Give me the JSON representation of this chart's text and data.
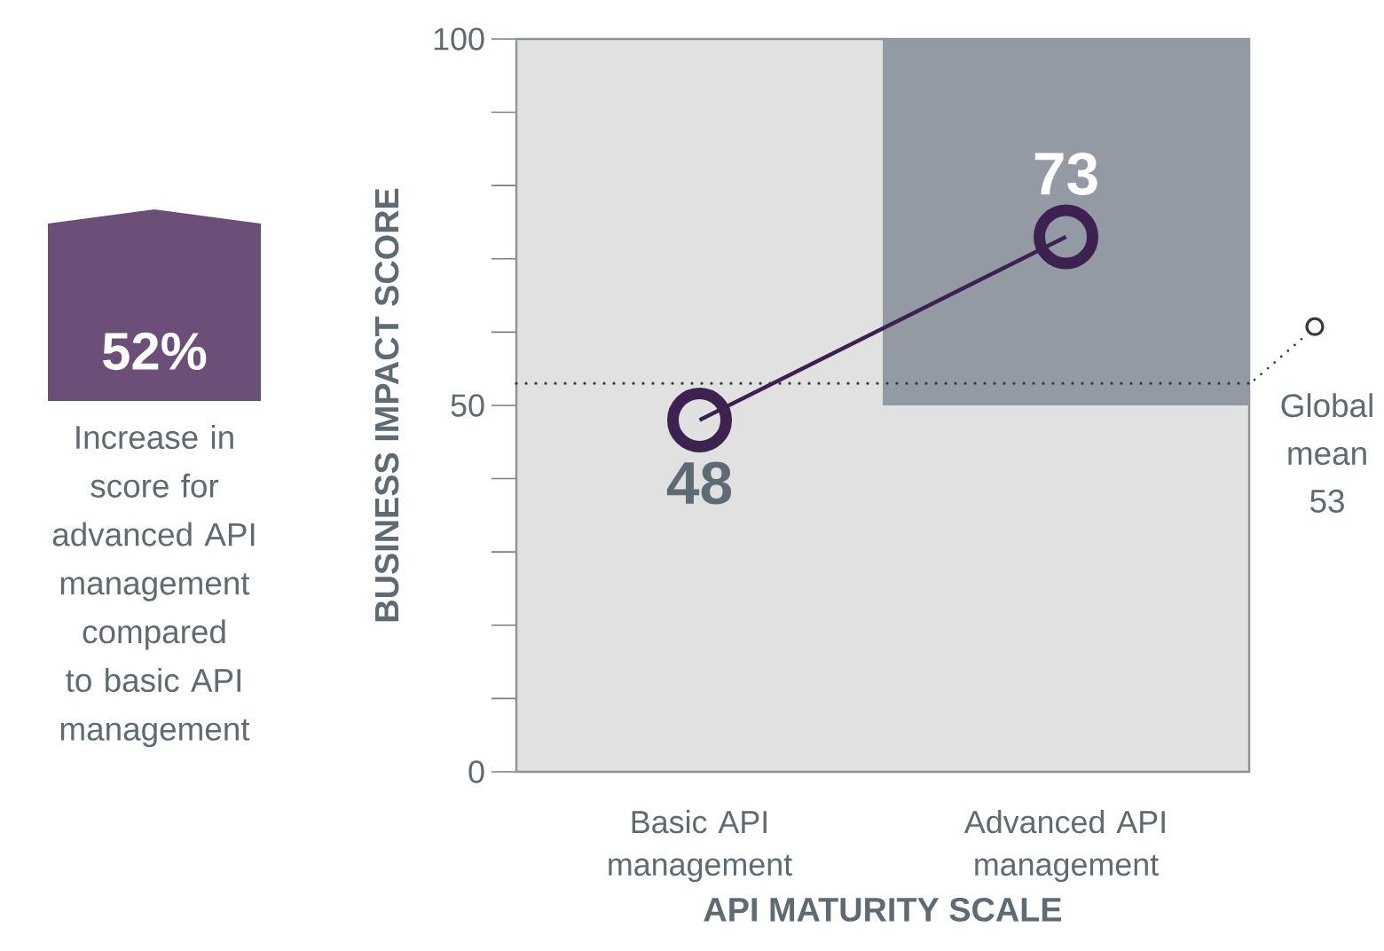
{
  "chart_data": [
    {
      "type": "other",
      "color": "#6b4f78",
      "title": "52%",
      "subtitle": "Increase in score for advanced API management compared to basic API management"
    },
    {
      "type": "line",
      "xlabel": "API MATURITY SCALE",
      "ylabel": "BUSINESS IMPACT SCORE",
      "categories": [
        "Basic API management",
        "Advanced API management"
      ],
      "series": [
        {
          "type": "bar",
          "color": "#939aa3",
          "values": [
            null,
            50
          ],
          "base": [
            null,
            50
          ]
        },
        {
          "type": "line",
          "color": "#3d2150",
          "values": [
            48,
            73
          ],
          "value_labels": [
            "48",
            "73"
          ]
        }
      ],
      "ylim": [
        0,
        100
      ],
      "yticks": [
        0,
        {
          "value": 10,
          "label": null
        },
        {
          "value": 20,
          "label": null
        },
        {
          "value": 30,
          "label": null
        },
        {
          "value": 40,
          "label": null
        },
        50,
        {
          "value": 60,
          "label": null
        },
        {
          "value": 70,
          "label": null
        },
        {
          "value": 80,
          "label": null
        },
        {
          "value": 90,
          "label": null
        },
        100
      ],
      "ref_lines": [
        {
          "axis": "y",
          "value": 53,
          "label": "Global mean 53",
          "color": "#333a3f",
          "line_style": "dotted"
        }
      ],
      "marker": "circle",
      "line_style": "solid",
      "grid": false
    }
  ]
}
